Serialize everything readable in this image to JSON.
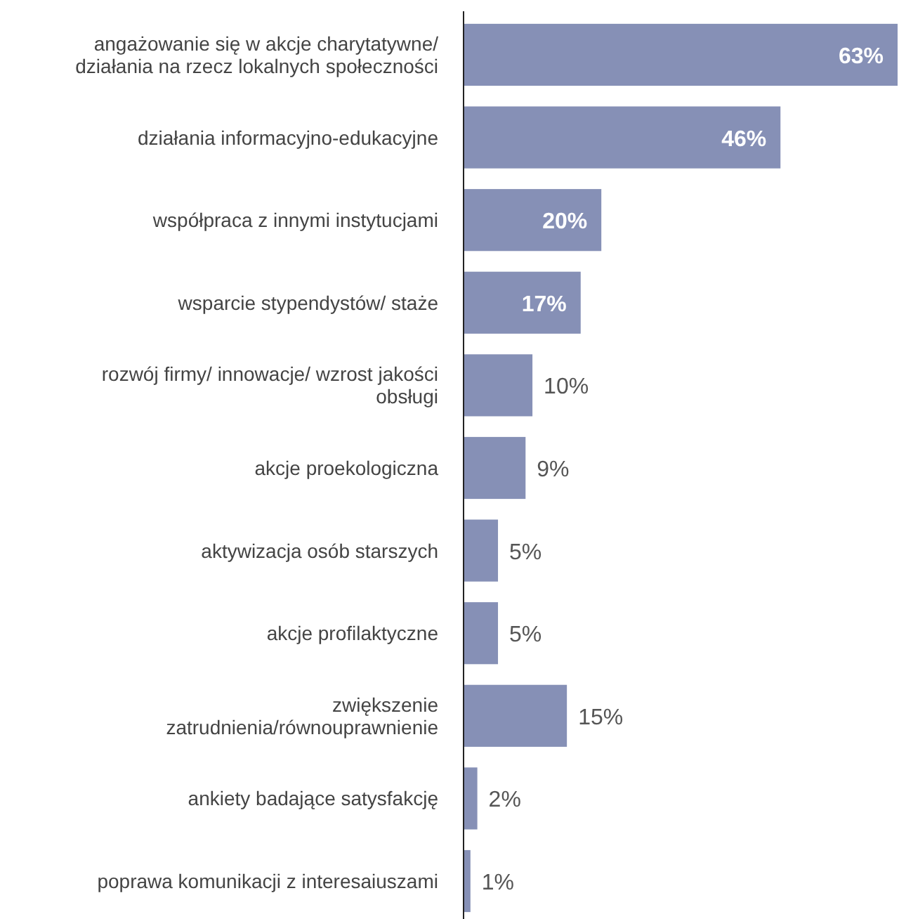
{
  "chart_data": {
    "type": "bar",
    "orientation": "horizontal",
    "categories": [
      "angażowanie się w akcje charytatywne/ działania na rzecz lokalnych społeczności",
      "działania informacyjno-edukacyjne",
      "współpraca z innymi instytucjami",
      "wsparcie stypendystów/ staże",
      "rozwój firmy/ innowacje/ wzrost jakości obsługi",
      "akcje proekologiczna",
      "aktywizacja osób starszych",
      "akcje profilaktyczne",
      "zwiększenie zatrudnienia/równouprawnienie",
      "ankiety badające satysfakcję",
      "poprawa komunikacji z interesaiuszami"
    ],
    "values": [
      63,
      46,
      20,
      17,
      10,
      9,
      5,
      5,
      15,
      2,
      1
    ],
    "value_labels": [
      "63%",
      "46%",
      "20%",
      "17%",
      "10%",
      "9%",
      "5%",
      "5%",
      "15%",
      "2%",
      "1%"
    ],
    "color": "#8690b6",
    "tick_labels": "y"
  }
}
